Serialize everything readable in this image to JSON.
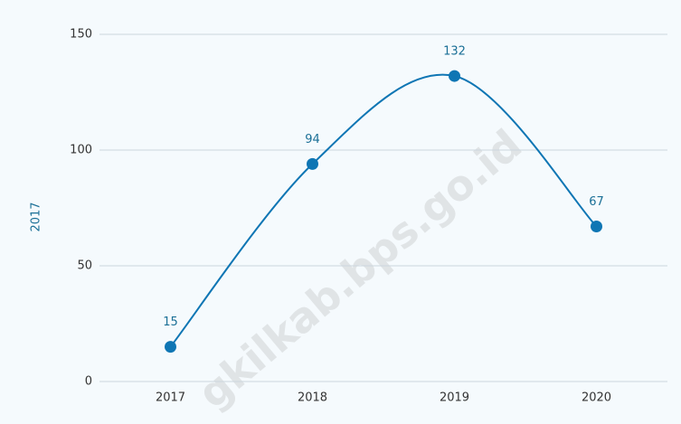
{
  "chart_data": {
    "type": "line",
    "y_axis_label": "2017",
    "categories": [
      "2017",
      "2018",
      "2019",
      "2020"
    ],
    "values": [
      15,
      94,
      132,
      67
    ],
    "color": "#0f76b4",
    "ylim": [
      0,
      150
    ],
    "yticks": [
      0,
      50,
      100,
      150
    ],
    "grid": true,
    "smooth": true,
    "watermark": "gkilkab.bps.go.id"
  }
}
